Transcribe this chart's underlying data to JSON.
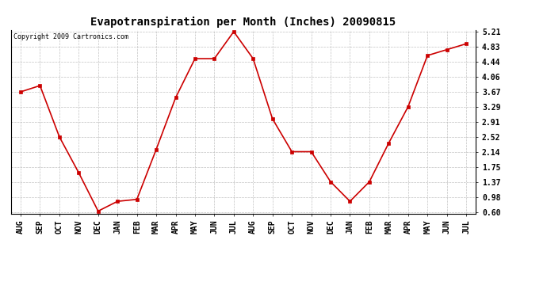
{
  "title": "Evapotranspiration per Month (Inches) 20090815",
  "copyright": "Copyright 2009 Cartronics.com",
  "x_labels": [
    "AUG",
    "SEP",
    "OCT",
    "NOV",
    "DEC",
    "JAN",
    "FEB",
    "MAR",
    "APR",
    "MAY",
    "JUN",
    "JUL",
    "AUG",
    "SEP",
    "OCT",
    "NOV",
    "DEC",
    "JAN",
    "FEB",
    "MAR",
    "APR",
    "MAY",
    "JUN",
    "JUL"
  ],
  "y_values": [
    3.67,
    3.83,
    2.52,
    1.6,
    0.62,
    0.87,
    0.92,
    2.2,
    3.52,
    4.52,
    4.52,
    5.21,
    4.52,
    2.98,
    2.14,
    2.14,
    1.37,
    0.87,
    1.37,
    2.36,
    3.29,
    4.6,
    4.75,
    4.9
  ],
  "y_ticks": [
    0.6,
    0.98,
    1.37,
    1.75,
    2.14,
    2.52,
    2.91,
    3.29,
    3.67,
    4.06,
    4.44,
    4.83,
    5.21
  ],
  "line_color": "#cc0000",
  "marker": "s",
  "marker_size": 2.5,
  "background_color": "#ffffff",
  "plot_bg_color": "#ffffff",
  "grid_color": "#bbbbbb",
  "title_fontsize": 10,
  "tick_fontsize": 7,
  "copyright_fontsize": 6
}
